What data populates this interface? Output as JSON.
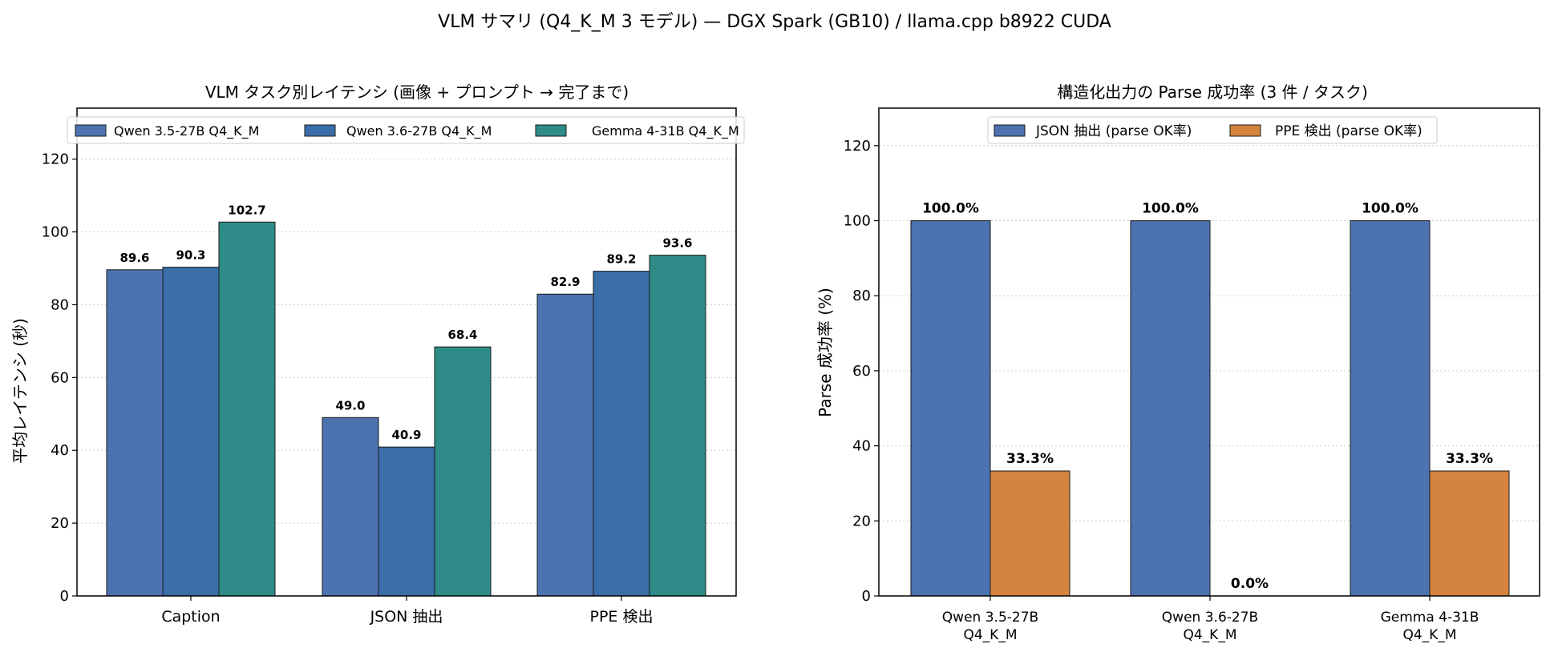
{
  "suptitle": "VLM サマリ (Q4_K_M 3 モデル) — DGX Spark (GB10) / llama.cpp b8922 CUDA",
  "chart_data": [
    {
      "type": "bar",
      "title": "VLM タスク別レイテンシ (画像 + プロンプト → 完了まで)",
      "xlabel": "",
      "ylabel": "平均レイテンシ (秒)",
      "categories": [
        "Caption",
        "JSON 抽出",
        "PPE 検出"
      ],
      "series": [
        {
          "name": "Qwen 3.5-27B Q4_K_M",
          "color": "#4c72b0",
          "values": [
            89.6,
            49.0,
            82.9
          ]
        },
        {
          "name": "Qwen 3.6-27B Q4_K_M",
          "color": "#3a6ea8",
          "values": [
            90.3,
            40.9,
            89.2
          ]
        },
        {
          "name": "Gemma 4-31B Q4_K_M",
          "color": "#2e8b87",
          "values": [
            102.7,
            68.4,
            93.6
          ]
        }
      ],
      "value_labels": [
        [
          "89.6",
          "49.0",
          "82.9"
        ],
        [
          "90.3",
          "40.9",
          "89.2"
        ],
        [
          "102.7",
          "68.4",
          "93.6"
        ]
      ],
      "ylim": [
        0,
        134
      ],
      "yticks": [
        0,
        20,
        40,
        60,
        80,
        100,
        120
      ],
      "ytick_labels": [
        "0",
        "20",
        "40",
        "60",
        "80",
        "100",
        "120"
      ],
      "grid": "y-dotted",
      "legend_placement": "top"
    },
    {
      "type": "bar",
      "title": "構造化出力の Parse 成功率 (3 件 / タスク)",
      "xlabel": "",
      "ylabel": "Parse 成功率 (%)",
      "categories": [
        [
          "Qwen 3.5-27B",
          "Q4_K_M"
        ],
        [
          "Qwen 3.6-27B",
          "Q4_K_M"
        ],
        [
          "Gemma 4-31B",
          "Q4_K_M"
        ]
      ],
      "series": [
        {
          "name": "JSON 抽出 (parse OK率)",
          "color": "#4c72b0",
          "values": [
            100.0,
            100.0,
            100.0
          ]
        },
        {
          "name": "PPE 検出 (parse OK率)",
          "color": "#d4843f",
          "values": [
            33.3,
            0.0,
            33.3
          ]
        }
      ],
      "value_labels": [
        [
          "100.0%",
          "100.0%",
          "100.0%"
        ],
        [
          "33.3%",
          "0.0%",
          "33.3%"
        ]
      ],
      "ylim": [
        0,
        130
      ],
      "yticks": [
        0,
        20,
        40,
        60,
        80,
        100,
        120
      ],
      "ytick_labels": [
        "0",
        "20",
        "40",
        "60",
        "80",
        "100",
        "120"
      ],
      "grid": "y-dotted",
      "legend_placement": "top"
    }
  ]
}
